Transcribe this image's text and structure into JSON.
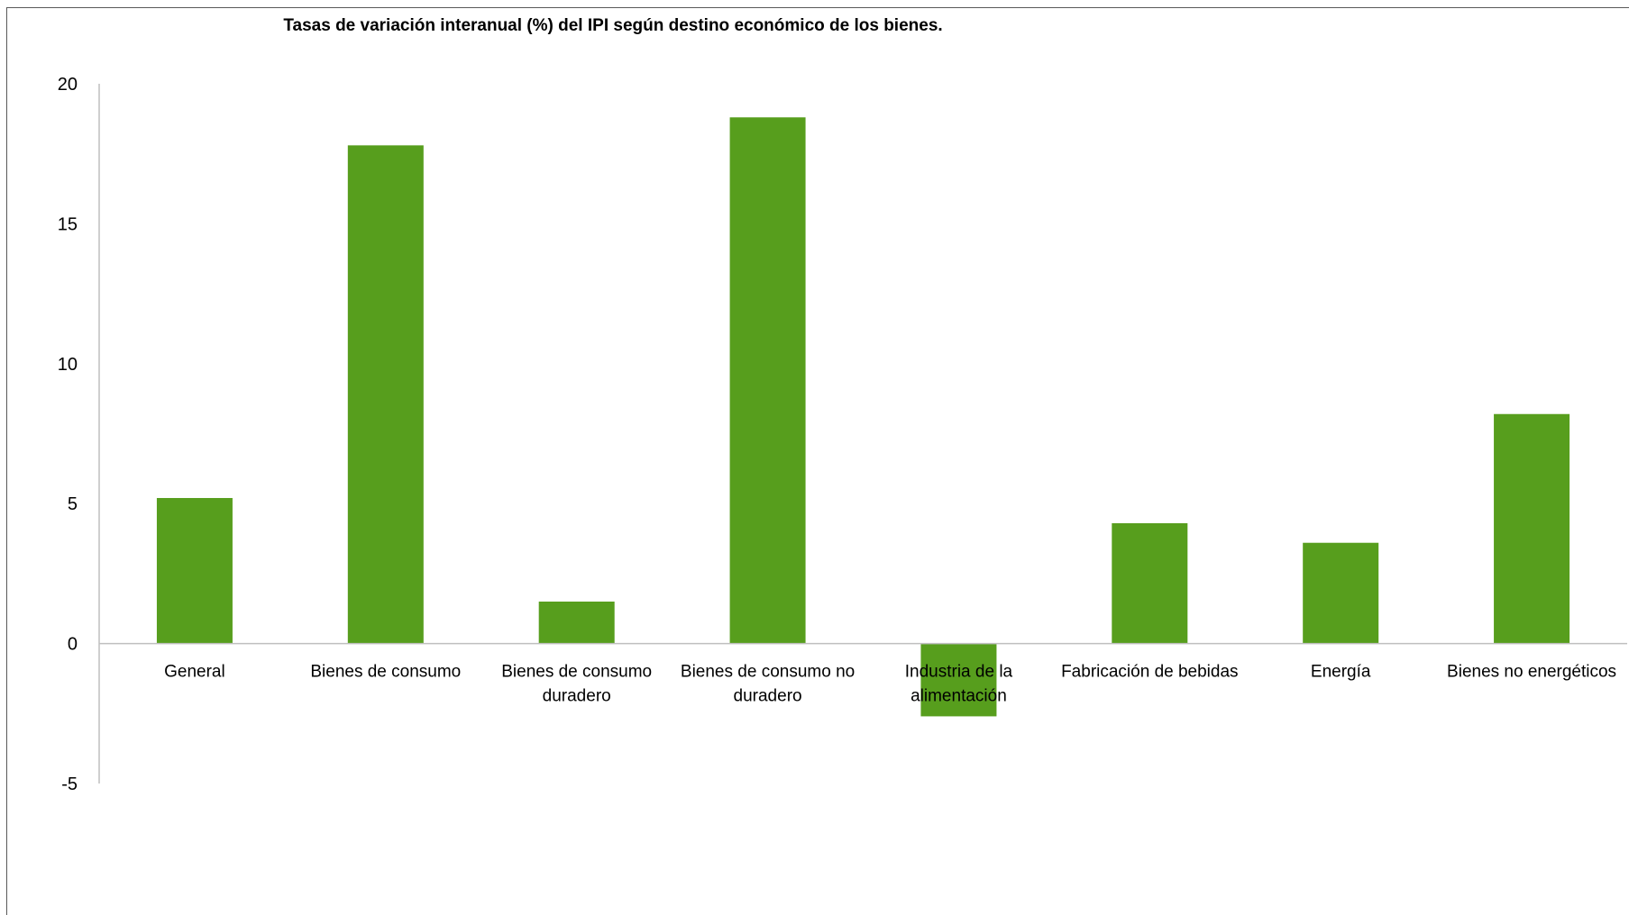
{
  "chart_data": {
    "type": "bar",
    "title": "Tasas de variación interanual (%) del IPI según destino económico de los bienes.",
    "categories": [
      [
        "General"
      ],
      [
        "Bienes de consumo"
      ],
      [
        "Bienes de consumo",
        "duradero"
      ],
      [
        "Bienes de consumo no",
        "duradero"
      ],
      [
        "Industria de la",
        "alimentación"
      ],
      [
        "Fabricación de bebidas"
      ],
      [
        "Energía"
      ],
      [
        "Bienes no energéticos"
      ]
    ],
    "values": [
      5.2,
      17.8,
      1.5,
      18.8,
      -2.6,
      4.3,
      3.6,
      8.2
    ],
    "ylim": [
      -5,
      20
    ],
    "yticks": [
      -5,
      0,
      5,
      10,
      15,
      20
    ],
    "xlabel": "",
    "ylabel": "",
    "grid": false,
    "colors": {
      "bar": "#579e1d",
      "axis": "#bfbfbf"
    }
  }
}
